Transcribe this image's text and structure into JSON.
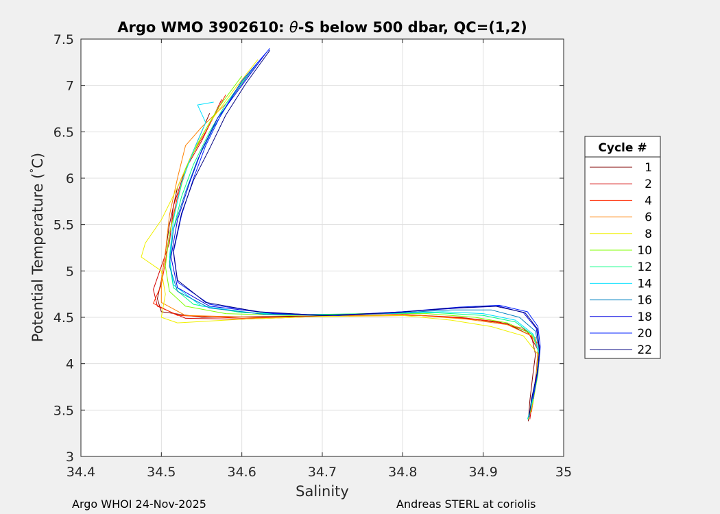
{
  "chart_data": {
    "type": "line",
    "title_prefix": "Argo WMO 3902610: ",
    "title_theta": "θ",
    "title_suffix": "-S below 500 dbar,  QC=(1,2)",
    "xlabel": "Salinity",
    "ylabel_prefix": "Potential Temperature (",
    "ylabel_degree": "°",
    "ylabel_suffix": "C)",
    "xlim": [
      34.4,
      35
    ],
    "ylim": [
      3,
      7.5
    ],
    "xticks": [
      "34.4",
      "34.5",
      "34.6",
      "34.7",
      "34.8",
      "34.9",
      "35"
    ],
    "yticks": [
      "3",
      "3.5",
      "4",
      "4.5",
      "5",
      "5.5",
      "6",
      "6.5",
      "7",
      "7.5"
    ],
    "grid": true,
    "legend_title": "Cycle #",
    "legend_position": "outside-right",
    "series": [
      {
        "name": "1",
        "color": "#800000",
        "points": [
          [
            34.56,
            6.7
          ],
          [
            34.54,
            6.3
          ],
          [
            34.52,
            5.9
          ],
          [
            34.51,
            5.5
          ],
          [
            34.505,
            5.2
          ],
          [
            34.5,
            4.9
          ],
          [
            34.495,
            4.7
          ],
          [
            34.5,
            4.56
          ],
          [
            34.55,
            4.5
          ],
          [
            34.65,
            4.51
          ],
          [
            34.75,
            4.52
          ],
          [
            34.82,
            4.52
          ],
          [
            34.88,
            4.49
          ],
          [
            34.93,
            4.43
          ],
          [
            34.96,
            4.3
          ],
          [
            34.965,
            4.1
          ],
          [
            34.962,
            3.9
          ],
          [
            34.958,
            3.6
          ],
          [
            34.956,
            3.38
          ]
        ]
      },
      {
        "name": "2",
        "color": "#d40000",
        "points": [
          [
            34.575,
            6.85
          ],
          [
            34.55,
            6.4
          ],
          [
            34.53,
            6.1
          ],
          [
            34.515,
            5.7
          ],
          [
            34.51,
            5.3
          ],
          [
            34.5,
            5.05
          ],
          [
            34.49,
            4.8
          ],
          [
            34.495,
            4.62
          ],
          [
            34.53,
            4.49
          ],
          [
            34.6,
            4.48
          ],
          [
            34.7,
            4.51
          ],
          [
            34.8,
            4.53
          ],
          [
            34.87,
            4.5
          ],
          [
            34.92,
            4.45
          ],
          [
            34.955,
            4.35
          ],
          [
            34.968,
            4.15
          ],
          [
            34.966,
            3.9
          ],
          [
            34.962,
            3.65
          ],
          [
            34.958,
            3.4
          ]
        ]
      },
      {
        "name": "4",
        "color": "#ff2a00",
        "points": [
          [
            34.58,
            6.9
          ],
          [
            34.555,
            6.5
          ],
          [
            34.535,
            6.2
          ],
          [
            34.52,
            5.8
          ],
          [
            34.51,
            5.4
          ],
          [
            34.505,
            5.1
          ],
          [
            34.5,
            4.85
          ],
          [
            34.49,
            4.65
          ],
          [
            34.52,
            4.52
          ],
          [
            34.6,
            4.49
          ],
          [
            34.7,
            4.51
          ],
          [
            34.8,
            4.53
          ],
          [
            34.86,
            4.5
          ],
          [
            34.91,
            4.46
          ],
          [
            34.95,
            4.38
          ],
          [
            34.97,
            4.2
          ],
          [
            34.968,
            3.95
          ],
          [
            34.963,
            3.7
          ],
          [
            34.957,
            3.42
          ]
        ]
      },
      {
        "name": "6",
        "color": "#ff8000",
        "points": [
          [
            34.61,
            7.15
          ],
          [
            34.58,
            6.8
          ],
          [
            34.55,
            6.55
          ],
          [
            34.53,
            6.35
          ],
          [
            34.52,
            6.0
          ],
          [
            34.51,
            5.6
          ],
          [
            34.505,
            5.2
          ],
          [
            34.5,
            4.9
          ],
          [
            34.5,
            4.66
          ],
          [
            34.53,
            4.52
          ],
          [
            34.62,
            4.5
          ],
          [
            34.72,
            4.51
          ],
          [
            34.82,
            4.52
          ],
          [
            34.88,
            4.48
          ],
          [
            34.93,
            4.42
          ],
          [
            34.965,
            4.28
          ],
          [
            34.97,
            4.05
          ],
          [
            34.966,
            3.8
          ],
          [
            34.96,
            3.48
          ]
        ]
      },
      {
        "name": "8",
        "color": "#f0f000",
        "points": [
          [
            34.62,
            7.28
          ],
          [
            34.59,
            6.95
          ],
          [
            34.56,
            6.6
          ],
          [
            34.54,
            6.3
          ],
          [
            34.52,
            5.9
          ],
          [
            34.5,
            5.55
          ],
          [
            34.48,
            5.3
          ],
          [
            34.475,
            5.15
          ],
          [
            34.5,
            5.0
          ],
          [
            34.505,
            4.75
          ],
          [
            34.5,
            4.5
          ],
          [
            34.52,
            4.44
          ],
          [
            34.6,
            4.48
          ],
          [
            34.7,
            4.51
          ],
          [
            34.8,
            4.52
          ],
          [
            34.86,
            4.47
          ],
          [
            34.91,
            4.4
          ],
          [
            34.95,
            4.3
          ],
          [
            34.968,
            4.1
          ],
          [
            34.966,
            3.85
          ],
          [
            34.96,
            3.55
          ]
        ]
      },
      {
        "name": "10",
        "color": "#80ff00",
        "points": [
          [
            34.6,
            7.1
          ],
          [
            34.57,
            6.75
          ],
          [
            34.55,
            6.45
          ],
          [
            34.53,
            6.1
          ],
          [
            34.52,
            5.75
          ],
          [
            34.51,
            5.4
          ],
          [
            34.505,
            5.05
          ],
          [
            34.51,
            4.78
          ],
          [
            34.53,
            4.62
          ],
          [
            34.58,
            4.54
          ],
          [
            34.66,
            4.52
          ],
          [
            34.75,
            4.54
          ],
          [
            34.83,
            4.54
          ],
          [
            34.89,
            4.5
          ],
          [
            34.93,
            4.44
          ],
          [
            34.96,
            4.32
          ],
          [
            34.97,
            4.12
          ],
          [
            34.968,
            3.88
          ],
          [
            34.962,
            3.6
          ],
          [
            34.956,
            3.4
          ]
        ]
      },
      {
        "name": "12",
        "color": "#00ff80",
        "points": [
          [
            34.61,
            7.15
          ],
          [
            34.58,
            6.8
          ],
          [
            34.56,
            6.5
          ],
          [
            34.54,
            6.15
          ],
          [
            34.525,
            5.8
          ],
          [
            34.515,
            5.45
          ],
          [
            34.51,
            5.1
          ],
          [
            34.515,
            4.82
          ],
          [
            34.54,
            4.64
          ],
          [
            34.6,
            4.55
          ],
          [
            34.68,
            4.53
          ],
          [
            34.77,
            4.54
          ],
          [
            34.84,
            4.55
          ],
          [
            34.9,
            4.52
          ],
          [
            34.94,
            4.45
          ],
          [
            34.963,
            4.3
          ],
          [
            34.97,
            4.08
          ],
          [
            34.967,
            3.85
          ],
          [
            34.96,
            3.55
          ]
        ]
      },
      {
        "name": "14",
        "color": "#00e0ff",
        "points": [
          [
            34.565,
            6.82
          ],
          [
            34.545,
            6.79
          ],
          [
            34.555,
            6.6
          ],
          [
            34.54,
            6.3
          ],
          [
            34.525,
            5.95
          ],
          [
            34.515,
            5.55
          ],
          [
            34.51,
            5.15
          ],
          [
            34.515,
            4.85
          ],
          [
            34.55,
            4.62
          ],
          [
            34.62,
            4.54
          ],
          [
            34.7,
            4.52
          ],
          [
            34.78,
            4.54
          ],
          [
            34.85,
            4.56
          ],
          [
            34.9,
            4.54
          ],
          [
            34.94,
            4.47
          ],
          [
            34.962,
            4.32
          ],
          [
            34.97,
            4.1
          ],
          [
            34.966,
            3.85
          ],
          [
            34.96,
            3.55
          ],
          [
            34.955,
            3.4
          ]
        ]
      },
      {
        "name": "16",
        "color": "#0080c0",
        "points": [
          [
            34.62,
            7.25
          ],
          [
            34.59,
            6.9
          ],
          [
            34.565,
            6.55
          ],
          [
            34.545,
            6.2
          ],
          [
            34.53,
            5.85
          ],
          [
            34.515,
            5.45
          ],
          [
            34.51,
            5.05
          ],
          [
            34.52,
            4.78
          ],
          [
            34.56,
            4.6
          ],
          [
            34.63,
            4.53
          ],
          [
            34.72,
            4.52
          ],
          [
            34.8,
            4.55
          ],
          [
            34.86,
            4.58
          ],
          [
            34.91,
            4.58
          ],
          [
            34.945,
            4.5
          ],
          [
            34.965,
            4.35
          ],
          [
            34.97,
            4.12
          ],
          [
            34.967,
            3.88
          ],
          [
            34.96,
            3.58
          ]
        ]
      },
      {
        "name": "18",
        "color": "#0000e0",
        "points": [
          [
            34.63,
            7.35
          ],
          [
            34.6,
            7.0
          ],
          [
            34.57,
            6.65
          ],
          [
            34.55,
            6.3
          ],
          [
            34.535,
            5.95
          ],
          [
            34.52,
            5.55
          ],
          [
            34.512,
            5.15
          ],
          [
            34.52,
            4.82
          ],
          [
            34.56,
            4.62
          ],
          [
            34.64,
            4.54
          ],
          [
            34.72,
            4.52
          ],
          [
            34.8,
            4.56
          ],
          [
            34.87,
            4.6
          ],
          [
            34.92,
            4.62
          ],
          [
            34.95,
            4.55
          ],
          [
            34.966,
            4.38
          ],
          [
            34.97,
            4.15
          ],
          [
            34.967,
            3.9
          ],
          [
            34.96,
            3.6
          ]
        ]
      },
      {
        "name": "20",
        "color": "#0020ff",
        "points": [
          [
            34.635,
            7.4
          ],
          [
            34.6,
            7.05
          ],
          [
            34.575,
            6.7
          ],
          [
            34.555,
            6.35
          ],
          [
            34.54,
            6.0
          ],
          [
            34.525,
            5.6
          ],
          [
            34.515,
            5.2
          ],
          [
            34.52,
            4.88
          ],
          [
            34.56,
            4.64
          ],
          [
            34.63,
            4.55
          ],
          [
            34.71,
            4.52
          ],
          [
            34.8,
            4.56
          ],
          [
            34.87,
            4.61
          ],
          [
            34.92,
            4.63
          ],
          [
            34.955,
            4.56
          ],
          [
            34.968,
            4.4
          ],
          [
            34.971,
            4.18
          ],
          [
            34.968,
            3.92
          ],
          [
            34.962,
            3.62
          ]
        ]
      },
      {
        "name": "22",
        "color": "#000080",
        "points": [
          [
            34.635,
            7.38
          ],
          [
            34.605,
            7.02
          ],
          [
            34.58,
            6.68
          ],
          [
            34.56,
            6.32
          ],
          [
            34.54,
            5.98
          ],
          [
            34.525,
            5.62
          ],
          [
            34.515,
            5.22
          ],
          [
            34.52,
            4.9
          ],
          [
            34.555,
            4.66
          ],
          [
            34.62,
            4.56
          ],
          [
            34.7,
            4.52
          ],
          [
            34.79,
            4.55
          ],
          [
            34.86,
            4.6
          ],
          [
            34.915,
            4.62
          ],
          [
            34.952,
            4.55
          ],
          [
            34.967,
            4.38
          ],
          [
            34.97,
            4.15
          ],
          [
            34.967,
            3.9
          ],
          [
            34.96,
            3.62
          ],
          [
            34.957,
            3.42
          ]
        ]
      }
    ]
  },
  "footer": {
    "left": "Argo WHOI 24-Nov-2025",
    "right": "Andreas STERL at coriolis"
  }
}
